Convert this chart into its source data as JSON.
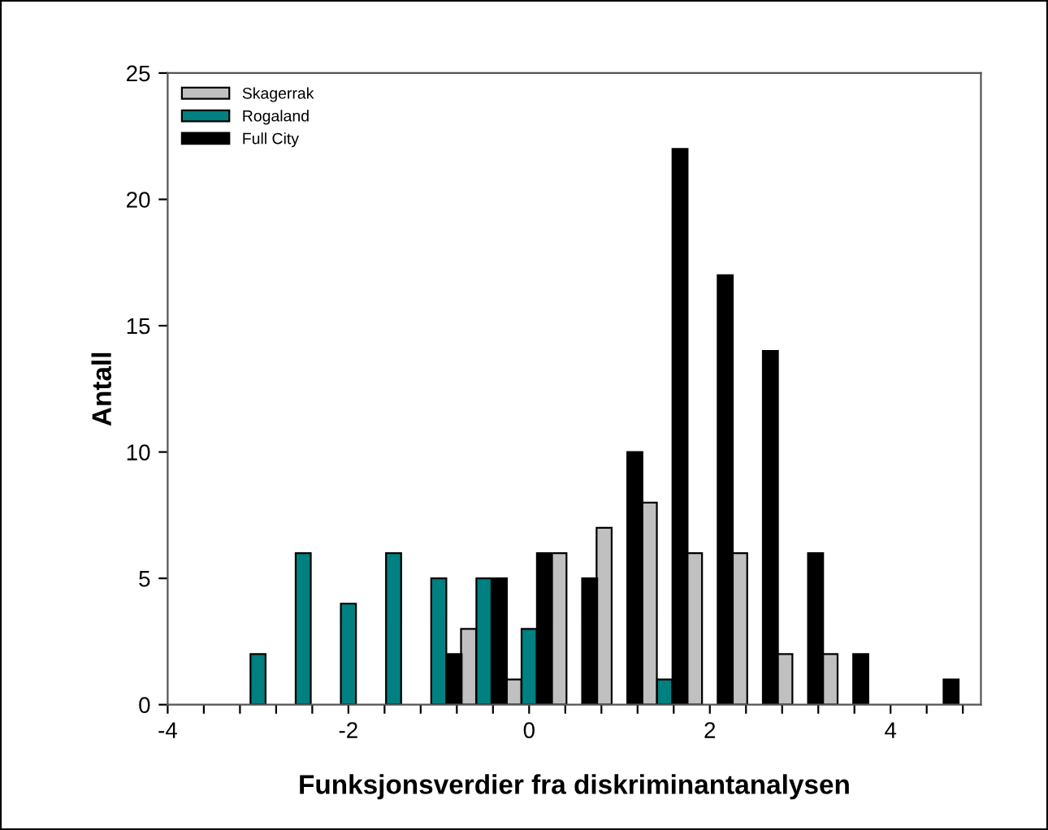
{
  "chart_data": {
    "type": "bar",
    "xlabel": "Funksjonsverdier fra diskriminantanalysen",
    "ylabel": "Antall",
    "series": [
      {
        "name": "Skagerrak",
        "color": "#c0c0c0",
        "x": [
          -0.67,
          -0.17,
          0.33,
          0.83,
          1.33,
          1.83,
          2.33,
          2.83,
          3.33
        ],
        "values": [
          3,
          1,
          6,
          7,
          8,
          6,
          6,
          2,
          2
        ]
      },
      {
        "name": "Rogaland",
        "color": "#008080",
        "x": [
          -3,
          -2.5,
          -2,
          -1.5,
          -1,
          -0.5,
          0,
          1.5
        ],
        "values": [
          2,
          6,
          4,
          6,
          5,
          5,
          3,
          1
        ]
      },
      {
        "name": "Full City",
        "color": "#000000",
        "x": [
          -0.83,
          -0.33,
          0.17,
          0.67,
          1.17,
          1.67,
          2.17,
          2.67,
          3.17,
          3.67,
          4.67
        ],
        "values": [
          2,
          5,
          6,
          5,
          10,
          22,
          17,
          14,
          6,
          2,
          1
        ]
      }
    ],
    "xlim": [
      -4,
      5
    ],
    "ylim": [
      0,
      25
    ],
    "xticks": [
      -4,
      {
        "value": -3.6,
        "label": null
      },
      {
        "value": -3.2,
        "label": null
      },
      {
        "value": -2.8,
        "label": null
      },
      {
        "value": -2.4,
        "label": null
      },
      -2,
      {
        "value": -1.6,
        "label": null
      },
      {
        "value": -1.2,
        "label": null
      },
      {
        "value": -0.8,
        "label": null
      },
      {
        "value": -0.4,
        "label": null
      },
      0,
      {
        "value": 0.4,
        "label": null
      },
      {
        "value": 0.8,
        "label": null
      },
      {
        "value": 1.2,
        "label": null
      },
      {
        "value": 1.6,
        "label": null
      },
      2,
      {
        "value": 2.4,
        "label": null
      },
      {
        "value": 2.8,
        "label": null
      },
      {
        "value": 3.2,
        "label": null
      },
      {
        "value": 3.6,
        "label": null
      },
      4,
      {
        "value": 4.4,
        "label": null
      },
      {
        "value": 4.8,
        "label": null
      }
    ],
    "yticks": [
      0,
      5,
      10,
      15,
      20,
      25
    ],
    "legend": "top left",
    "grid": false
  }
}
